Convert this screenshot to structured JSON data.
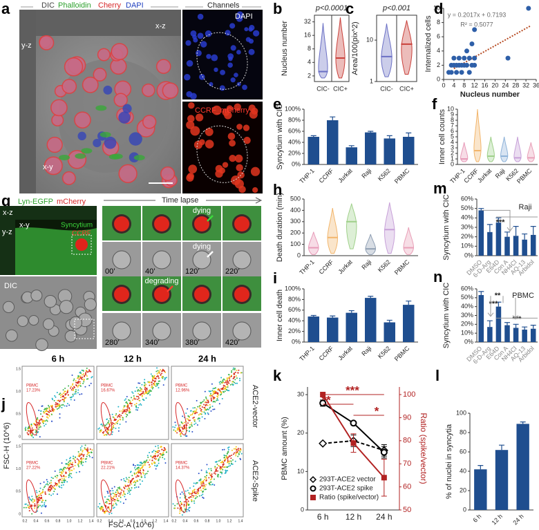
{
  "figure": {
    "a": {
      "label": "a",
      "dic": "DIC",
      "phalloidin": "Phalloidin",
      "cherry": "Cherry",
      "dapi": "DAPI",
      "channels": "Channels",
      "xz": "x-z",
      "yz": "y-z",
      "xy": "x-y",
      "channel_dapi": "DAPI",
      "channel_ccrf": "CCRF_mCherry"
    },
    "g": {
      "label": "g",
      "lyn": "Lyn-EGFP",
      "mcherry": "mCherry",
      "time_lapse": "Time lapse",
      "xz": "x-z",
      "yz": "y-z",
      "xy": "x-y",
      "syncytium": "Syncytium",
      "ccrf": "CCRF",
      "dic": "DIC",
      "notes": [
        "dying",
        "dying",
        "degrading"
      ],
      "times": [
        "00’",
        "40’",
        "120’",
        "220’",
        "280’",
        "340’",
        "380’",
        "420’"
      ]
    },
    "j": {
      "label": "j",
      "times": [
        "6 h",
        "12 h",
        "24 h"
      ],
      "rows": [
        "ACE2-vector",
        "ACE2-Spike"
      ],
      "ylabel": "FSC-H (10^6)",
      "xlabel": "FSC-A (10^6)",
      "gates": [
        [
          "PBMC",
          "17.23%"
        ],
        [
          "PBMC",
          "16.67%"
        ],
        [
          "PBMC",
          "12.96%"
        ],
        [
          "PBMC",
          "27.22%"
        ],
        [
          "PBMC",
          "22.21%"
        ],
        [
          "PBMC",
          "14.37%"
        ]
      ],
      "xticks": [
        "0.2",
        "0.4",
        "0.6",
        "0.8",
        "1.0",
        "1.2",
        "1.4"
      ],
      "yticks": [
        "0",
        "0.5",
        "1.0",
        "1.5"
      ]
    }
  },
  "chart_data": [
    {
      "panel": "b",
      "type": "violin",
      "title": "p<0.0001",
      "ylabel": "Nucleus number",
      "categories": [
        "CIC-",
        "CIC+"
      ],
      "values": [
        2.5,
        5
      ],
      "ranges": [
        [
          1.8,
          30
        ],
        [
          1.8,
          40
        ]
      ],
      "colors": [
        "#6a6fc4",
        "#c9403a"
      ],
      "log": true,
      "ylim": [
        1.5,
        45
      ],
      "yticks": [
        2,
        4,
        8,
        16,
        32
      ]
    },
    {
      "panel": "c",
      "type": "violin",
      "title": "p<0.001",
      "ylabel": "Area/100(pix^2)",
      "categories": [
        "CIC-",
        "CIC+"
      ],
      "values": [
        4,
        8
      ],
      "ranges": [
        [
          1.3,
          25
        ],
        [
          1.5,
          30
        ]
      ],
      "colors": [
        "#6a6fc4",
        "#c9403a"
      ],
      "log": true,
      "ylim": [
        1,
        40
      ],
      "yticks": [
        1,
        10
      ]
    },
    {
      "panel": "d",
      "type": "scatter",
      "xlabel": "Nucleus number",
      "ylabel": "Internalized cells",
      "color": "#2e5fa8",
      "x": [
        2,
        3,
        3,
        4,
        4,
        5,
        5,
        6,
        6,
        7,
        7,
        8,
        8,
        9,
        9,
        10,
        10,
        11,
        11,
        12,
        12,
        12,
        25,
        33
      ],
      "values": [
        1,
        2,
        1,
        2,
        3,
        1,
        2,
        2,
        3,
        2,
        1,
        2,
        3,
        4,
        2,
        3,
        1,
        5,
        2,
        7,
        3,
        2,
        3,
        10
      ],
      "trendline": {
        "slope": 0.2017,
        "intercept": 0.7193,
        "color": "#b5481f"
      },
      "annotations": [
        "y = 0.2017x + 0.7193",
        "R² = 0.5077"
      ],
      "xlim": [
        0,
        36
      ],
      "xticks": [
        0,
        4,
        8,
        12,
        16,
        20,
        24,
        28,
        32,
        36
      ],
      "ylim": [
        0,
        10
      ],
      "yticks": [
        0,
        2,
        4,
        6,
        8,
        10
      ]
    },
    {
      "panel": "e",
      "type": "bar",
      "ylabel": "Syncytium with CIC",
      "categories": [
        "THP-1",
        "CCRF",
        "Jurkat",
        "Raji",
        "K562",
        "PBMC"
      ],
      "values": [
        50,
        80,
        31,
        58,
        47,
        50
      ],
      "errors": [
        2,
        6,
        3,
        2,
        5,
        7
      ],
      "color": "#1f4e8f",
      "ylim": [
        0,
        100
      ],
      "yticks": [
        {
          "value": 0,
          "label": "0%"
        },
        {
          "value": 20,
          "label": "20%"
        },
        {
          "value": 40,
          "label": "40%"
        },
        {
          "value": 60,
          "label": "60%"
        },
        {
          "value": 80,
          "label": "80%"
        },
        {
          "value": 100,
          "label": "100%"
        }
      ]
    },
    {
      "panel": "f",
      "type": "violin",
      "ylabel": "Inner cell counts",
      "categories": [
        "THP-1",
        "CCRF",
        "Jurkat",
        "Raji",
        "K562",
        "PBMC"
      ],
      "values": [
        1,
        2.5,
        1.5,
        1.5,
        1.2,
        1.2
      ],
      "ranges": [
        [
          0.5,
          4
        ],
        [
          0.5,
          10
        ],
        [
          0.5,
          5
        ],
        [
          0.5,
          5
        ],
        [
          0.5,
          5
        ],
        [
          0.5,
          4
        ]
      ],
      "colors": [
        "#e79ab8",
        "#f2b56b",
        "#9fd08a",
        "#8fb3d9",
        "#c7a0d8",
        "#e9a0b8"
      ],
      "ylim": [
        0,
        10
      ],
      "yticks": [
        0,
        1,
        2,
        3,
        4,
        5,
        6,
        7,
        8,
        9,
        10
      ]
    },
    {
      "panel": "h",
      "type": "violin",
      "ylabel": "Death duration (min)",
      "categories": [
        "THP-1",
        "CCRF",
        "Jurkat",
        "Raji",
        "K562",
        "PBMC"
      ],
      "values": [
        70,
        160,
        300,
        60,
        230,
        70
      ],
      "ranges": [
        [
          10,
          210
        ],
        [
          20,
          420
        ],
        [
          60,
          460
        ],
        [
          10,
          190
        ],
        [
          20,
          470
        ],
        [
          10,
          250
        ]
      ],
      "colors": [
        "#e79ab8",
        "#f2b56b",
        "#9fd08a",
        "#8f9fb3",
        "#c7a0d8",
        "#e9a0b8"
      ],
      "ylim": [
        0,
        500
      ],
      "yticks": [
        0,
        100,
        200,
        300,
        400,
        500
      ]
    },
    {
      "panel": "m",
      "type": "bar",
      "ylabel": "Syncytium with CIC",
      "categories": [
        "DMSO",
        "6-D-Arg",
        "E64D",
        "Con A",
        "NH4Cl",
        "AQ-13",
        "Arbidol"
      ],
      "values": [
        48,
        25,
        35,
        20,
        21,
        17,
        22
      ],
      "errors": [
        2,
        8,
        5,
        5,
        10,
        6,
        9
      ],
      "color": "#1f4e8f",
      "annotations": [
        "Raji",
        "***"
      ],
      "ylim": [
        0,
        60
      ],
      "yticks": [
        {
          "value": 0,
          "label": "0%"
        },
        {
          "value": 10,
          "label": "10%"
        },
        {
          "value": 20,
          "label": "20%"
        },
        {
          "value": 30,
          "label": "30%"
        },
        {
          "value": 40,
          "label": "40%"
        },
        {
          "value": 50,
          "label": "50%"
        },
        {
          "value": 60,
          "label": "60%"
        }
      ]
    },
    {
      "panel": "i",
      "type": "bar",
      "ylabel": "Inner cell death",
      "categories": [
        "THP-1",
        "CCRF",
        "Jurkat",
        "Raji",
        "K562",
        "PBMC"
      ],
      "values": [
        48,
        46,
        55,
        83,
        37,
        70
      ],
      "errors": [
        2,
        3,
        4,
        3,
        4,
        7
      ],
      "color": "#1f4e8f",
      "ylim": [
        0,
        100
      ],
      "yticks": [
        {
          "value": 0,
          "label": "0%"
        },
        {
          "value": 20,
          "label": "20%"
        },
        {
          "value": 40,
          "label": "40%"
        },
        {
          "value": 60,
          "label": "60%"
        },
        {
          "value": 80,
          "label": "80%"
        },
        {
          "value": 100,
          "label": "100%"
        }
      ]
    },
    {
      "panel": "n",
      "type": "bar",
      "ylabel": "Syncytium with CIC",
      "categories": [
        "DMSO",
        "6-D-Arg",
        "E64D",
        "Con A",
        "NH4Cl",
        "AQ-13",
        "Arbidol"
      ],
      "values": [
        53,
        17,
        40,
        19,
        16,
        14,
        15
      ],
      "errors": [
        4,
        7,
        5,
        3,
        4,
        3,
        4
      ],
      "color": "#1f4e8f",
      "annotations": [
        "PBMC",
        "***",
        "**",
        "***"
      ],
      "ylim": [
        0,
        60
      ],
      "yticks": [
        {
          "value": 0,
          "label": "0%"
        },
        {
          "value": 10,
          "label": "10%"
        },
        {
          "value": 20,
          "label": "20%"
        },
        {
          "value": 30,
          "label": "30%"
        },
        {
          "value": 40,
          "label": "40%"
        },
        {
          "value": 50,
          "label": "50%"
        },
        {
          "value": 60,
          "label": "60%"
        }
      ]
    },
    {
      "panel": "k",
      "type": "line",
      "ylabel": "PBMC amount (%)",
      "y2label": "Ratio (spike/vector)",
      "categories": [
        "6 h",
        "12 h",
        "24 h"
      ],
      "series": [
        {
          "name": "293T-ACE2 vector",
          "color": "#000000",
          "values": [
            17.3,
            18,
            15.5
          ],
          "errors": [
            0,
            1.5,
            1.5
          ],
          "marker": "diamond",
          "dash": true
        },
        {
          "name": "293T-ACE2 spike",
          "color": "#000000",
          "values": [
            27.8,
            22.6,
            15
          ],
          "errors": [
            0.8,
            0.5,
            1.5
          ],
          "marker": "circle"
        },
        {
          "name": "Ratio (spike/vector)",
          "color": "#b22222",
          "values": [
            100,
            79,
            64
          ],
          "errors": [
            0,
            4,
            8
          ],
          "marker": "square",
          "axis": "y2"
        }
      ],
      "annotations": [
        "***",
        "**",
        "*"
      ],
      "ylim": [
        0,
        32
      ],
      "yticks": [
        0,
        10,
        20,
        30
      ],
      "y2lim": [
        50,
        103.3
      ],
      "y2ticks": [
        50,
        60,
        70,
        80,
        90,
        100
      ]
    },
    {
      "panel": "l",
      "type": "bar",
      "ylabel": "% of nuclei in syncytia",
      "categories": [
        "6 h",
        "12 h",
        "24 h"
      ],
      "values": [
        42,
        62,
        89
      ],
      "errors": [
        4,
        5,
        2
      ],
      "color": "#1f4e8f",
      "ylim": [
        0,
        100
      ],
      "yticks": [
        0,
        20,
        40,
        60,
        80,
        100
      ]
    }
  ]
}
